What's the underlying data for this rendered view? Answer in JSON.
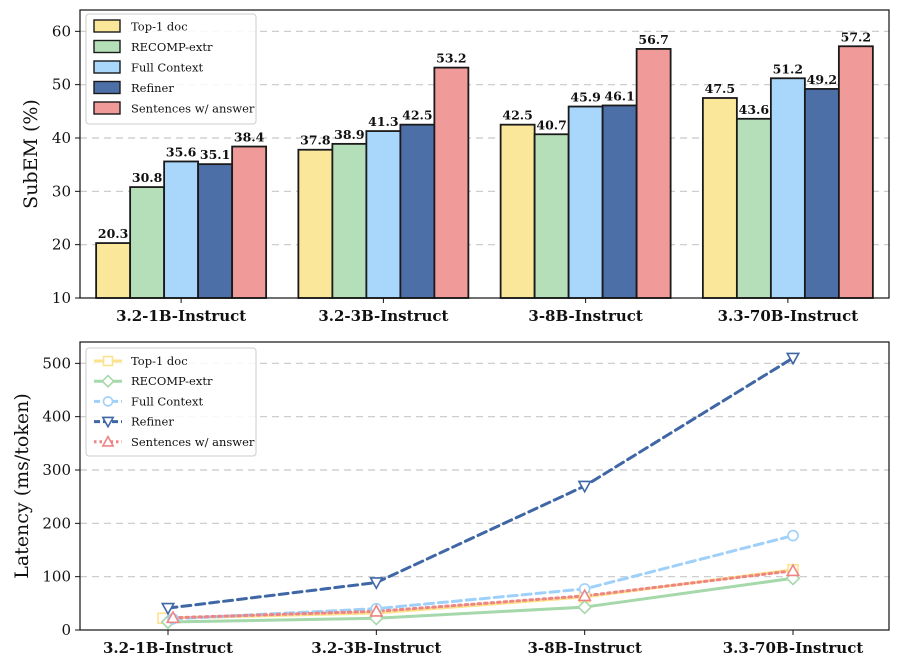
{
  "chart_data": [
    {
      "type": "bar",
      "ylabel": "SubEM (%)",
      "xlabel": "",
      "title": "",
      "ylim": [
        10,
        64
      ],
      "yticks": [
        10,
        20,
        30,
        40,
        50,
        60
      ],
      "grid": "horizontal dashed",
      "legend_position": "top-left",
      "categories": [
        "3.2-1B-Instruct",
        "3.2-3B-Instruct",
        "3-8B-Instruct",
        "3.3-70B-Instruct"
      ],
      "series": [
        {
          "name": "Top-1 doc",
          "color": "#fbe79a",
          "values": [
            20.3,
            37.8,
            42.5,
            47.5
          ]
        },
        {
          "name": "RECOMP-extr",
          "color": "#b4dfb9",
          "values": [
            30.8,
            38.9,
            40.7,
            43.6
          ]
        },
        {
          "name": "Full Context",
          "color": "#a9d6fb",
          "values": [
            35.6,
            41.3,
            45.9,
            51.2
          ]
        },
        {
          "name": "Refiner",
          "color": "#4d6fa8",
          "values": [
            35.1,
            42.5,
            46.1,
            49.2
          ]
        },
        {
          "name": "Sentences w/ answer",
          "color": "#f19a9a",
          "values": [
            38.4,
            53.2,
            56.7,
            57.2
          ]
        }
      ]
    },
    {
      "type": "line",
      "ylabel": "Latency (ms/token)",
      "xlabel": "",
      "title": "",
      "ylim": [
        0,
        540
      ],
      "yticks": [
        0,
        100,
        200,
        300,
        400,
        500
      ],
      "grid": "horizontal dashed",
      "legend_position": "top-left",
      "categories": [
        "3.2-1B-Instruct",
        "3.2-3B-Instruct",
        "3-8B-Instruct",
        "3.3-70B-Instruct"
      ],
      "series": [
        {
          "name": "Top-1 doc",
          "color": "#fde28c",
          "marker": "square",
          "linestyle": "solid",
          "values": [
            22,
            32,
            62,
            113
          ]
        },
        {
          "name": "RECOMP-extr",
          "color": "#a5d8aa",
          "marker": "diamond",
          "linestyle": "solid",
          "values": [
            15,
            22,
            43,
            97
          ]
        },
        {
          "name": "Full Context",
          "color": "#9fd0fa",
          "marker": "circle",
          "linestyle": "dashed",
          "values": [
            21,
            40,
            77,
            177
          ]
        },
        {
          "name": "Refiner",
          "color": "#3f67a6",
          "marker": "triangle-down",
          "linestyle": "dashed",
          "values": [
            41,
            89,
            270,
            510
          ]
        },
        {
          "name": "Sentences w/ answer",
          "color": "#ee8585",
          "marker": "triangle-up",
          "linestyle": "dotted",
          "values": [
            23,
            35,
            64,
            111
          ]
        }
      ]
    }
  ]
}
